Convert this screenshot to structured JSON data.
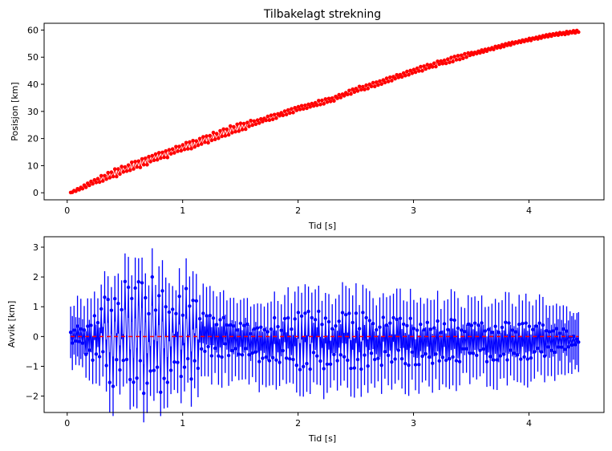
{
  "chart_data": [
    {
      "type": "scatter",
      "title": "Tilbakelagt strekning",
      "xlabel": "Tid [s]",
      "ylabel": "Posisjon [km]",
      "xlim": [
        -0.2,
        4.65
      ],
      "ylim": [
        -2.6,
        62.5
      ],
      "xticks": [
        0,
        1,
        2,
        3,
        4
      ],
      "yticks": [
        0,
        10,
        20,
        30,
        40,
        50,
        60
      ],
      "grid": false,
      "color": "#ff0000",
      "series": [
        {
          "marker": "red-dots-with-line",
          "approx_points": {
            "x": [
              0.03,
              0.3,
              0.5,
              0.8,
              1.0,
              1.3,
              1.5,
              1.8,
              2.0,
              2.3,
              2.5,
              2.8,
              3.0,
              3.3,
              3.5,
              3.8,
              4.0,
              4.2,
              4.43
            ],
            "y": [
              0.0,
              5.3,
              8.7,
              13.5,
              16.6,
              21.2,
              24.4,
              28.2,
              31.0,
              34.5,
              37.9,
              41.9,
              44.8,
              48.8,
              51.2,
              54.5,
              56.5,
              58.2,
              59.6
            ]
          }
        }
      ]
    },
    {
      "type": "line",
      "title": "",
      "xlabel": "Tid [s]",
      "ylabel": "Avvik [km]",
      "xlim": [
        -0.2,
        4.65
      ],
      "ylim": [
        -2.55,
        3.35
      ],
      "xticks": [
        0,
        1,
        2,
        3,
        4
      ],
      "yticks": [
        -2,
        -1,
        0,
        1,
        2,
        3
      ],
      "grid": false,
      "series": [
        {
          "marker": "blue-errorbar",
          "color": "#0000ff",
          "x_range": [
            0.03,
            4.43
          ],
          "num_points": 300,
          "approx_errorbar_halfwidth": 0.9,
          "envelope": {
            "x": [
              0.03,
              0.2,
              0.4,
              0.6,
              0.8,
              1.0,
              1.2,
              1.5,
              2.0,
              2.5,
              3.0,
              3.5,
              4.0,
              4.3,
              4.43
            ],
            "amplitude": [
              0.3,
              0.7,
              1.8,
              2.1,
              2.0,
              1.9,
              0.8,
              0.6,
              1.0,
              1.0,
              0.8,
              0.7,
              0.7,
              0.4,
              0.1
            ]
          }
        },
        {
          "marker": "red-dashed-zero-line",
          "color": "#ff0000",
          "x": [
            0.03,
            4.43
          ],
          "y": [
            0,
            0
          ]
        }
      ]
    }
  ]
}
